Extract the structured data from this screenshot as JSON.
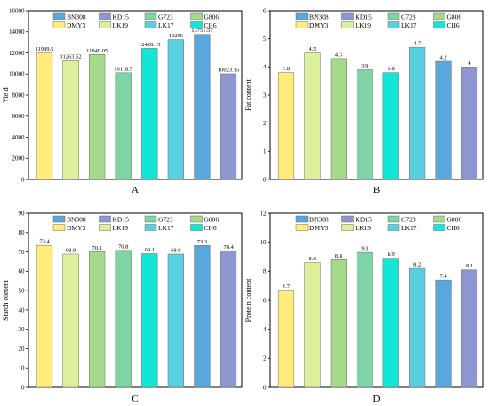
{
  "colors": {
    "BN308": "#5aa7dd",
    "KD15": "#8e96cf",
    "G723": "#7fd4a6",
    "G806": "#a6d98a",
    "DMY3": "#ffec7a",
    "LK19": "#dcf09a",
    "LK17": "#59d0e0",
    "CH6": "#13e5d6"
  },
  "legend_entries": [
    "BN308",
    "KD15",
    "G723",
    "G806",
    "DMY3",
    "LK19",
    "LK17",
    "CH6"
  ],
  "chart_data": [
    {
      "panel": "A",
      "type": "bar",
      "ylabel": "Yield",
      "ylim": [
        0,
        16000
      ],
      "yticks": [
        0,
        2000,
        4000,
        6000,
        8000,
        10000,
        12000,
        14000,
        16000
      ],
      "categories": [
        "DMY3",
        "LK19",
        "G806",
        "G723",
        "CH6",
        "LK17",
        "BN308",
        "KD15"
      ],
      "values": [
        11989.5,
        11263.52,
        11849.05,
        10118.5,
        12428.15,
        13256,
        13751.57,
        10023.15
      ],
      "labels": [
        "11989.5",
        "11263.52",
        "11849.05",
        "10118.5",
        "12428.15",
        "13256",
        "13751.57",
        "10023.15"
      ]
    },
    {
      "panel": "B",
      "type": "bar",
      "ylabel": "Fat content",
      "ylim": [
        0,
        6
      ],
      "yticks": [
        0,
        1,
        2,
        3,
        4,
        5,
        6
      ],
      "categories": [
        "DMY3",
        "LK19",
        "G806",
        "G723",
        "CH6",
        "LK17",
        "BN308",
        "KD15"
      ],
      "values": [
        3.8,
        4.5,
        4.3,
        3.9,
        3.8,
        4.7,
        4.2,
        4
      ],
      "labels": [
        "3.8",
        "4.5",
        "4.3",
        "3.9",
        "3.8",
        "4.7",
        "4.2",
        "4"
      ]
    },
    {
      "panel": "C",
      "type": "bar",
      "ylabel": "Starch content",
      "ylim": [
        0,
        90
      ],
      "yticks": [
        0,
        10,
        20,
        30,
        40,
        50,
        60,
        70,
        80,
        90
      ],
      "categories": [
        "DMY3",
        "LK19",
        "G806",
        "G723",
        "CH6",
        "LK17",
        "BN308",
        "KD15"
      ],
      "values": [
        73.4,
        68.9,
        70.1,
        70.8,
        69.1,
        68.9,
        73.3,
        70.4
      ],
      "labels": [
        "73.4",
        "68.9",
        "70.1",
        "70.8",
        "69.1",
        "68.9",
        "73.3",
        "70.4"
      ]
    },
    {
      "panel": "D",
      "type": "bar",
      "ylabel": "Protein content",
      "ylim": [
        0,
        12
      ],
      "yticks": [
        0,
        2,
        4,
        6,
        8,
        10,
        12
      ],
      "categories": [
        "DMY3",
        "LK19",
        "G806",
        "G723",
        "CH6",
        "LK17",
        "BN308",
        "KD15"
      ],
      "values": [
        6.7,
        8.6,
        8.8,
        9.3,
        8.9,
        8.2,
        7.4,
        8.1
      ],
      "labels": [
        "6.7",
        "8.6",
        "8.8",
        "9.3",
        "8.9",
        "8.2",
        "7.4",
        "8.1"
      ]
    }
  ]
}
